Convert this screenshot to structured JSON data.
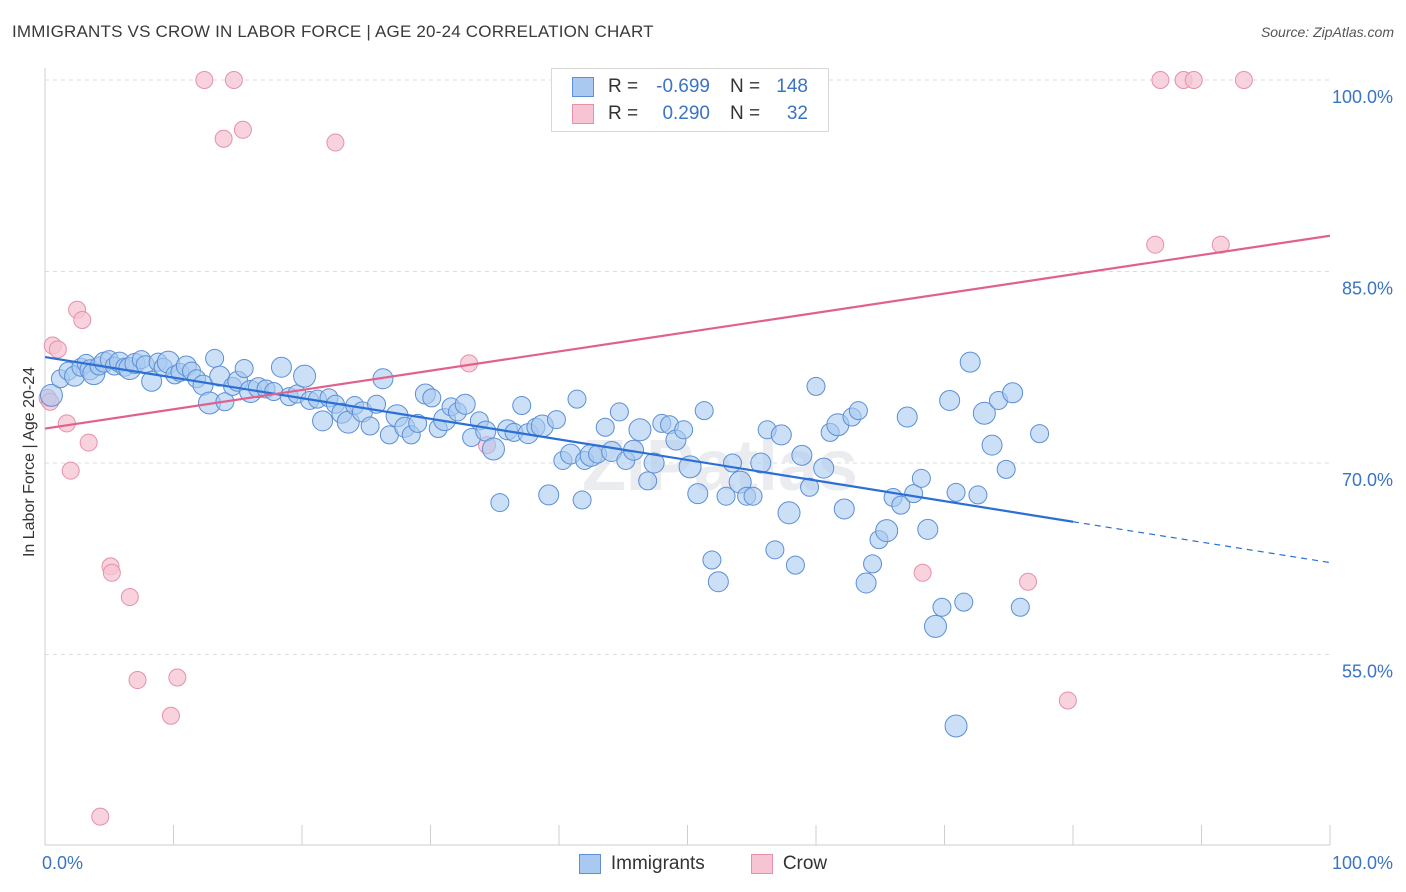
{
  "title": "IMMIGRANTS VS CROW IN LABOR FORCE | AGE 20-24 CORRELATION CHART",
  "source": "Source: ZipAtlas.com",
  "watermark": "ZIPatlas",
  "colors": {
    "immigrants_fill": "#a9c9f0",
    "immigrants_stroke": "#5b8fd6",
    "immigrants_line": "#2b6fd6",
    "crow_fill": "#f6c4d3",
    "crow_stroke": "#e690ab",
    "crow_line": "#e0628c",
    "axis_label": "#3a74c4"
  },
  "legend": {
    "rows": [
      {
        "series": "Immigrants",
        "r_label": "R =",
        "r_value": "-0.699",
        "n_label": "N =",
        "n_value": "148"
      },
      {
        "series": "Crow",
        "r_label": "R =",
        "r_value": "0.290",
        "n_label": "N =",
        "n_value": "32"
      }
    ]
  },
  "chart_data": {
    "type": "scatter",
    "title": "IMMIGRANTS VS CROW IN LABOR FORCE | AGE 20-24 CORRELATION CHART",
    "xlabel": "",
    "ylabel": "In Labor Force | Age 20-24",
    "xlim": [
      0,
      100
    ],
    "ylim": [
      40,
      100
    ],
    "x_tick_labels": [
      "0.0%",
      "100.0%"
    ],
    "y_tick_labels": [
      "100.0%",
      "85.0%",
      "70.0%",
      "55.0%"
    ],
    "y_ticks": [
      100,
      85,
      70,
      55
    ],
    "grid": true,
    "legend_position": "bottom-center",
    "series": [
      {
        "name": "Immigrants",
        "trend": {
          "x0": 0,
          "y0": 78.3,
          "x1": 80,
          "y1": 65.4,
          "dash_to_x": 100,
          "dash_to_y": 62.2
        },
        "points": [
          [
            0.5,
            75.3
          ],
          [
            1.2,
            76.6
          ],
          [
            1.8,
            77.2
          ],
          [
            2.3,
            76.8
          ],
          [
            2.8,
            77.5
          ],
          [
            3.2,
            77.8
          ],
          [
            3.5,
            77.3
          ],
          [
            3.8,
            77.0
          ],
          [
            4.2,
            77.6
          ],
          [
            4.6,
            77.9
          ],
          [
            5.0,
            78.1
          ],
          [
            5.4,
            77.6
          ],
          [
            5.8,
            77.9
          ],
          [
            6.2,
            77.5
          ],
          [
            6.6,
            77.4
          ],
          [
            7.0,
            77.8
          ],
          [
            7.5,
            78.1
          ],
          [
            7.8,
            77.7
          ],
          [
            8.3,
            76.4
          ],
          [
            8.8,
            77.9
          ],
          [
            9.2,
            77.5
          ],
          [
            9.6,
            77.9
          ],
          [
            10.1,
            76.9
          ],
          [
            10.5,
            77.1
          ],
          [
            11.0,
            77.6
          ],
          [
            11.4,
            77.2
          ],
          [
            11.8,
            76.6
          ],
          [
            12.3,
            76.1
          ],
          [
            12.8,
            74.7
          ],
          [
            13.2,
            78.2
          ],
          [
            13.6,
            76.8
          ],
          [
            14.0,
            74.8
          ],
          [
            14.6,
            76.0
          ],
          [
            15.0,
            76.4
          ],
          [
            15.5,
            77.4
          ],
          [
            16.0,
            75.6
          ],
          [
            16.6,
            75.9
          ],
          [
            17.2,
            75.8
          ],
          [
            17.8,
            75.6
          ],
          [
            18.4,
            77.5
          ],
          [
            19.0,
            75.2
          ],
          [
            19.6,
            75.4
          ],
          [
            20.2,
            76.8
          ],
          [
            20.6,
            74.9
          ],
          [
            21.2,
            75.0
          ],
          [
            21.6,
            73.3
          ],
          [
            22.1,
            75.1
          ],
          [
            22.6,
            74.6
          ],
          [
            23.1,
            73.9
          ],
          [
            23.6,
            73.2
          ],
          [
            24.1,
            74.5
          ],
          [
            24.7,
            74.0
          ],
          [
            25.3,
            72.9
          ],
          [
            25.8,
            74.6
          ],
          [
            26.3,
            76.6
          ],
          [
            26.8,
            72.2
          ],
          [
            27.4,
            73.7
          ],
          [
            28.0,
            72.8
          ],
          [
            28.5,
            72.2
          ],
          [
            29.0,
            73.1
          ],
          [
            29.6,
            75.4
          ],
          [
            30.1,
            75.1
          ],
          [
            30.6,
            72.7
          ],
          [
            31.1,
            73.4
          ],
          [
            31.6,
            74.4
          ],
          [
            32.1,
            74.0
          ],
          [
            32.7,
            74.6
          ],
          [
            33.2,
            72.0
          ],
          [
            33.8,
            73.3
          ],
          [
            34.3,
            72.5
          ],
          [
            34.9,
            71.1
          ],
          [
            35.4,
            66.9
          ],
          [
            36.0,
            72.6
          ],
          [
            36.5,
            72.4
          ],
          [
            37.1,
            74.5
          ],
          [
            37.6,
            72.3
          ],
          [
            38.2,
            72.8
          ],
          [
            38.7,
            72.9
          ],
          [
            39.2,
            67.5
          ],
          [
            39.8,
            73.4
          ],
          [
            40.3,
            70.2
          ],
          [
            40.9,
            70.7
          ],
          [
            41.4,
            75.0
          ],
          [
            42.0,
            70.2
          ],
          [
            42.5,
            70.6
          ],
          [
            43.0,
            70.7
          ],
          [
            43.6,
            72.8
          ],
          [
            44.1,
            70.9
          ],
          [
            44.7,
            74.0
          ],
          [
            45.2,
            70.2
          ],
          [
            45.8,
            71.0
          ],
          [
            46.3,
            72.6
          ],
          [
            46.9,
            68.6
          ],
          [
            47.4,
            70.0
          ],
          [
            48.0,
            73.1
          ],
          [
            48.6,
            73.0
          ],
          [
            49.1,
            71.8
          ],
          [
            49.7,
            72.6
          ],
          [
            50.2,
            69.7
          ],
          [
            50.8,
            67.6
          ],
          [
            51.3,
            74.1
          ],
          [
            51.9,
            62.4
          ],
          [
            52.4,
            60.7
          ],
          [
            53.0,
            67.4
          ],
          [
            53.5,
            70.0
          ],
          [
            54.1,
            68.5
          ],
          [
            54.6,
            67.4
          ],
          [
            55.1,
            67.4
          ],
          [
            55.7,
            70.0
          ],
          [
            56.2,
            72.6
          ],
          [
            56.8,
            63.2
          ],
          [
            57.3,
            72.2
          ],
          [
            57.9,
            66.1
          ],
          [
            58.4,
            62.0
          ],
          [
            58.9,
            70.6
          ],
          [
            59.5,
            68.1
          ],
          [
            60.0,
            76.0
          ],
          [
            60.6,
            69.6
          ],
          [
            61.1,
            72.4
          ],
          [
            61.7,
            73.0
          ],
          [
            62.2,
            66.4
          ],
          [
            62.8,
            73.6
          ],
          [
            63.3,
            74.1
          ],
          [
            63.9,
            60.6
          ],
          [
            64.4,
            62.1
          ],
          [
            64.9,
            64.0
          ],
          [
            65.5,
            64.7
          ],
          [
            66.0,
            67.3
          ],
          [
            66.6,
            66.7
          ],
          [
            67.1,
            73.6
          ],
          [
            67.6,
            67.6
          ],
          [
            68.2,
            68.8
          ],
          [
            68.7,
            64.8
          ],
          [
            69.3,
            57.2
          ],
          [
            69.8,
            58.7
          ],
          [
            70.4,
            74.9
          ],
          [
            70.9,
            67.7
          ],
          [
            71.5,
            59.1
          ],
          [
            72.0,
            77.9
          ],
          [
            72.6,
            67.5
          ],
          [
            73.1,
            73.9
          ],
          [
            73.7,
            71.4
          ],
          [
            74.2,
            74.9
          ],
          [
            74.8,
            69.5
          ],
          [
            75.3,
            75.5
          ],
          [
            75.9,
            58.7
          ],
          [
            77.4,
            72.3
          ],
          [
            70.9,
            49.4
          ],
          [
            41.8,
            67.1
          ]
        ]
      },
      {
        "name": "Crow",
        "trend": {
          "x0": 0,
          "y0": 72.7,
          "x1": 100,
          "y1": 87.8
        },
        "points": [
          [
            0.2,
            75.1
          ],
          [
            0.4,
            74.8
          ],
          [
            0.6,
            79.2
          ],
          [
            1.0,
            78.9
          ],
          [
            1.7,
            73.1
          ],
          [
            2.0,
            69.4
          ],
          [
            2.5,
            82.0
          ],
          [
            2.9,
            81.2
          ],
          [
            3.4,
            71.6
          ],
          [
            5.1,
            61.9
          ],
          [
            5.2,
            61.4
          ],
          [
            6.6,
            59.5
          ],
          [
            7.2,
            53.0
          ],
          [
            9.8,
            50.2
          ],
          [
            10.3,
            53.2
          ],
          [
            12.4,
            100.0
          ],
          [
            13.9,
            95.4
          ],
          [
            14.7,
            100.0
          ],
          [
            15.4,
            96.1
          ],
          [
            22.6,
            95.1
          ],
          [
            33.0,
            77.8
          ],
          [
            34.4,
            71.4
          ],
          [
            68.3,
            61.4
          ],
          [
            76.5,
            60.7
          ],
          [
            79.6,
            51.4
          ],
          [
            86.4,
            87.1
          ],
          [
            86.8,
            100.0
          ],
          [
            88.6,
            100.0
          ],
          [
            89.4,
            100.0
          ],
          [
            91.5,
            87.1
          ],
          [
            93.3,
            100.0
          ],
          [
            4.3,
            42.3
          ]
        ]
      }
    ]
  }
}
